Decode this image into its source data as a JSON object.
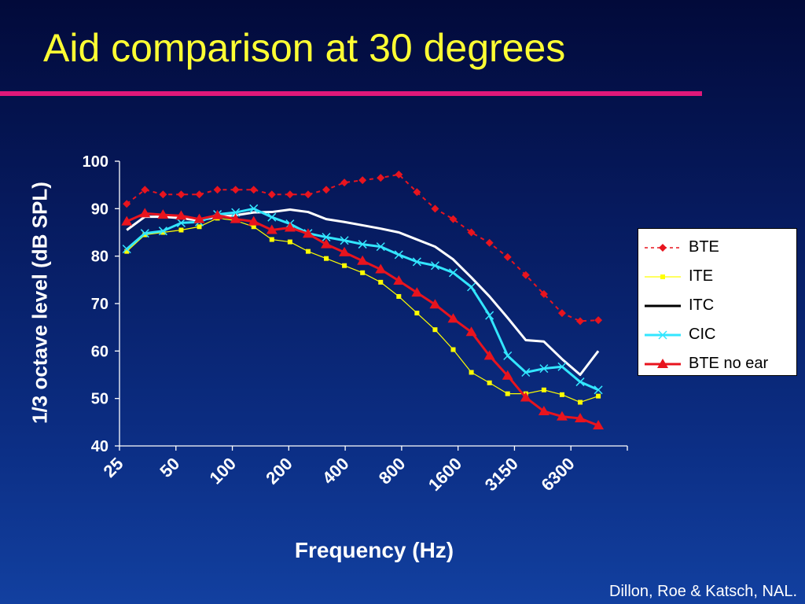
{
  "slide": {
    "title": "Aid comparison at 30 degrees",
    "credit": "Dillon, Roe & Katsch, NAL."
  },
  "colors": {
    "background": "#0a2270",
    "title": "#ffff33",
    "rule": "#e0187a"
  },
  "chart_data": {
    "type": "line",
    "xlabel": "Frequency (Hz)",
    "ylabel": "1/3 octave level (dB SPL)",
    "ylim": [
      40,
      100
    ],
    "yticks": [
      40,
      50,
      60,
      70,
      80,
      90,
      100
    ],
    "x_tick_labels": [
      "25",
      "50",
      "100",
      "200",
      "400",
      "800",
      "1600",
      "3150",
      "6300"
    ],
    "x_scale": "log (1/3 octave bands)",
    "grid": false,
    "legend_position": "right",
    "series": [
      {
        "name": "BTE",
        "color": "#e8141e",
        "style": "dashed",
        "marker": "diamond",
        "values": [
          91,
          94,
          93,
          93,
          93,
          94,
          94,
          94,
          93,
          93,
          93,
          94,
          95.5,
          96,
          96.5,
          97.2,
          93.5,
          90,
          87.8,
          85,
          82.8,
          79.8,
          76,
          72,
          68,
          66.3,
          66.5
        ]
      },
      {
        "name": "ITE",
        "color": "#ffff00",
        "style": "solid",
        "marker": "square",
        "values": [
          81,
          84.5,
          85,
          85.5,
          86.2,
          88,
          87.5,
          86.2,
          83.5,
          83,
          81,
          79.5,
          78,
          76.5,
          74.5,
          71.5,
          68,
          64.5,
          60.3,
          55.5,
          53.3,
          51,
          51,
          51.8,
          50.8,
          49.2,
          50.5
        ]
      },
      {
        "name": "ITC",
        "color": "#ffffff",
        "style": "solid",
        "marker": "none",
        "values": [
          85.5,
          88.3,
          88.3,
          88,
          87.5,
          88.3,
          88.6,
          89.2,
          89.3,
          89.8,
          89.3,
          87.8,
          87.2,
          86.5,
          85.8,
          85,
          83.5,
          82,
          79.3,
          75.5,
          71.5,
          67,
          62.3,
          62,
          58.3,
          55,
          60
        ]
      },
      {
        "name": "CIC",
        "color": "#33e6ff",
        "style": "solid",
        "marker": "x",
        "values": [
          81.5,
          84.8,
          85.3,
          87,
          87.2,
          88.8,
          89.2,
          90,
          88.2,
          86.8,
          84.8,
          84,
          83.3,
          82.5,
          82,
          80.3,
          78.8,
          78,
          76.5,
          73.5,
          67.5,
          59,
          55.5,
          56.3,
          56.7,
          53.5,
          51.8
        ]
      },
      {
        "name": "BTE no ear",
        "color": "#e8141e",
        "style": "solid",
        "marker": "triangle",
        "values": [
          87.3,
          89,
          88.7,
          88.5,
          87.8,
          88.6,
          87.8,
          87.3,
          85.5,
          86,
          84.7,
          82.5,
          80.8,
          79,
          77.2,
          74.8,
          72.3,
          69.8,
          66.8,
          64,
          59,
          54.8,
          50.2,
          47.3,
          46.2,
          45.8,
          44.3
        ]
      }
    ]
  }
}
